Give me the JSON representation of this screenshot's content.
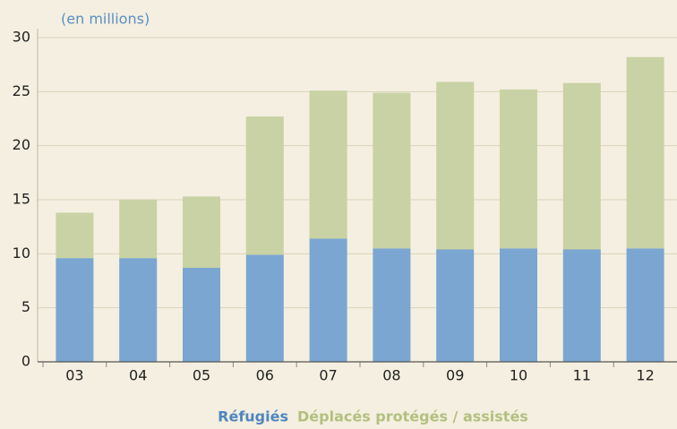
{
  "chart_data": {
    "type": "stacked_bar",
    "unit_label": "(en millions)",
    "categories": [
      "03",
      "04",
      "05",
      "06",
      "07",
      "08",
      "09",
      "10",
      "11",
      "12"
    ],
    "series": [
      {
        "name": "Réfugiés",
        "color": "#7aa6d1",
        "values": [
          9.6,
          9.6,
          8.7,
          9.9,
          11.4,
          10.5,
          10.4,
          10.5,
          10.4,
          10.5
        ]
      },
      {
        "name": "Déplacés protégés / assistés",
        "color": "#c9d2a4",
        "values": [
          4.2,
          5.4,
          6.6,
          12.8,
          13.7,
          14.4,
          15.5,
          14.7,
          15.4,
          17.7
        ]
      }
    ],
    "ylim": [
      0,
      30
    ],
    "yticks": [
      0,
      5,
      10,
      15,
      20,
      25,
      30
    ],
    "grid": true
  }
}
